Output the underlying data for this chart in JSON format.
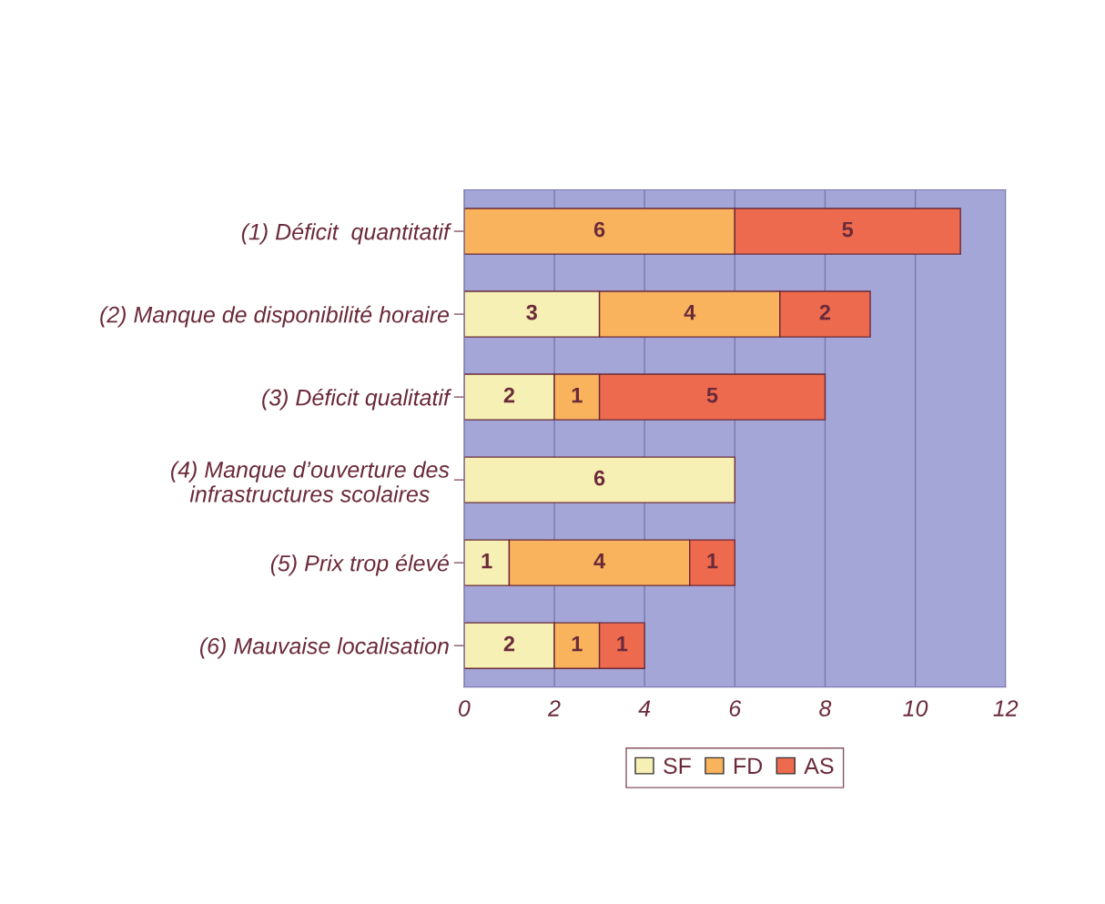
{
  "chart_data": {
    "type": "bar",
    "orientation": "horizontal",
    "stacked": true,
    "categories": [
      "(1) Déficit  quantitatif",
      "(2) Manque de disponibilité horaire",
      "(3) Déficit qualitatif",
      "(4) Manque d’ouverture des\ninfrastructures scolaires",
      "(5) Prix trop élevé",
      "(6) Mauvaise localisation"
    ],
    "series": [
      {
        "name": "SF",
        "color": "#f7f0b4",
        "values": [
          null,
          3,
          2,
          6,
          1,
          2
        ]
      },
      {
        "name": "FD",
        "color": "#f9b35c",
        "values": [
          6,
          4,
          1,
          null,
          4,
          1
        ]
      },
      {
        "name": "AS",
        "color": "#ee6a4f",
        "values": [
          5,
          2,
          5,
          null,
          1,
          1
        ]
      }
    ],
    "xlim": [
      0,
      12
    ],
    "xticks": [
      0,
      2,
      4,
      6,
      8,
      10,
      12
    ],
    "grid": "x",
    "legend": "bottom",
    "data_labels": true
  }
}
